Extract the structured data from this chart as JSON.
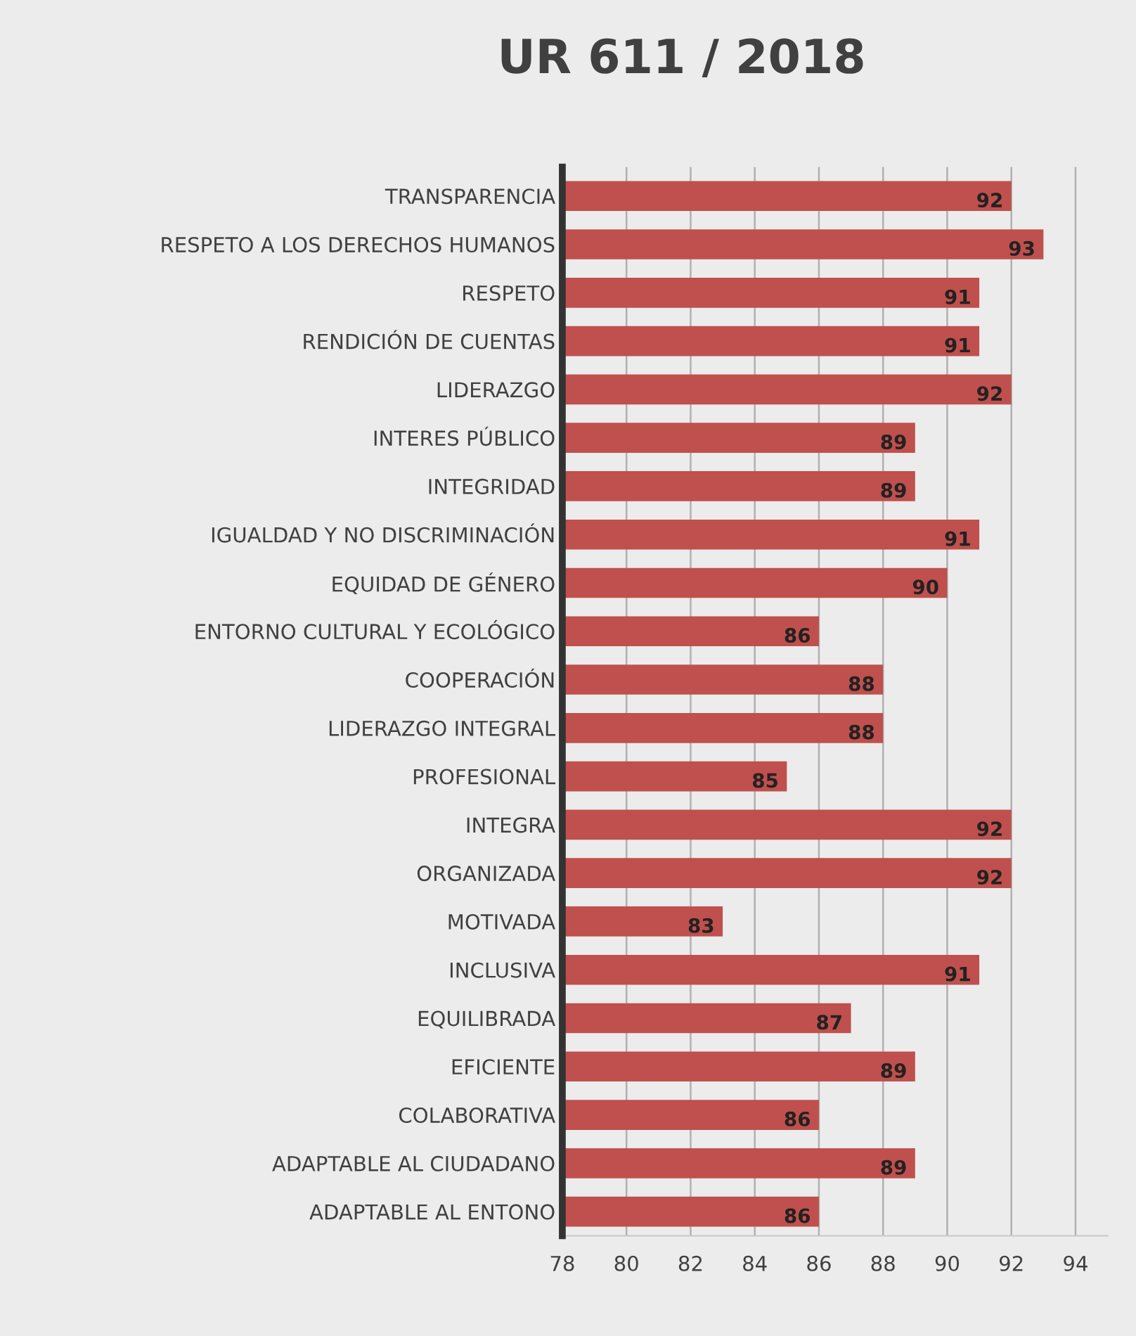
{
  "chart_data": {
    "type": "bar",
    "orientation": "horizontal",
    "title": "UR 611 / 2018",
    "categories": [
      "TRANSPARENCIA",
      "RESPETO A LOS DERECHOS HUMANOS",
      "RESPETO",
      "RENDICIÓN DE CUENTAS",
      "LIDERAZGO",
      "INTERES PÚBLICO",
      "INTEGRIDAD",
      "IGUALDAD Y NO DISCRIMINACIÓN",
      "EQUIDAD DE GÉNERO",
      "ENTORNO CULTURAL Y ECOLÓGICO",
      "COOPERACIÓN",
      "LIDERAZGO INTEGRAL",
      "PROFESIONAL",
      "INTEGRA",
      "ORGANIZADA",
      "MOTIVADA",
      "INCLUSIVA",
      "EQUILIBRADA",
      "EFICIENTE",
      "COLABORATIVA",
      "ADAPTABLE AL CIUDADANO",
      "ADAPTABLE AL ENTONO"
    ],
    "values": [
      92,
      93,
      91,
      91,
      92,
      89,
      89,
      91,
      90,
      86,
      88,
      88,
      85,
      92,
      92,
      83,
      91,
      87,
      89,
      86,
      89,
      86
    ],
    "color": "#c0504d",
    "xlim": [
      78,
      95
    ],
    "xticks": [
      78,
      80,
      82,
      84,
      86,
      88,
      90,
      92,
      94
    ],
    "grid": "x",
    "data_labels": true,
    "legend": false
  }
}
